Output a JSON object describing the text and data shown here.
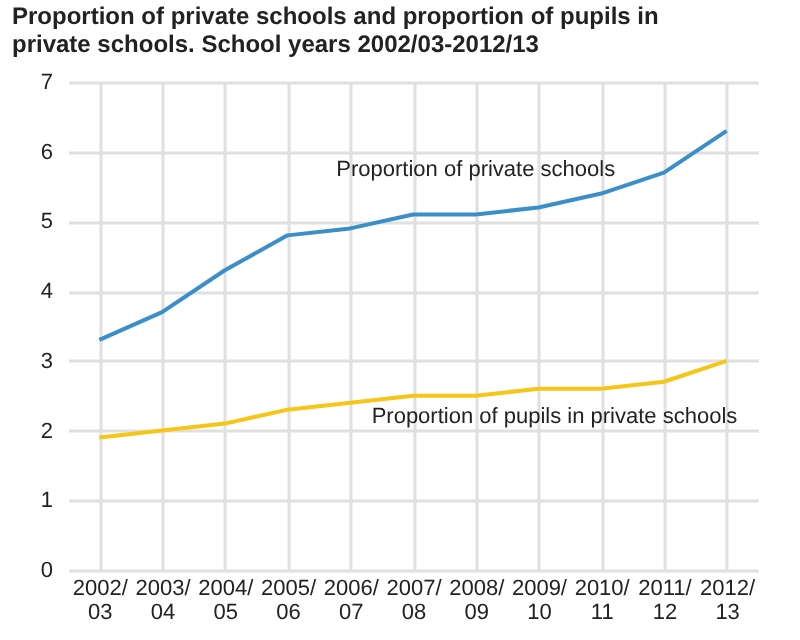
{
  "chart_data": {
    "type": "line",
    "title": "Proportion of private schools and proportion of pupils in private schools. School years 2002/03-2012/13",
    "categories": [
      "2002/03",
      "2003/04",
      "2004/05",
      "2005/06",
      "2006/07",
      "2007/08",
      "2008/09",
      "2009/10",
      "2010/11",
      "2011/12",
      "2012/13"
    ],
    "series": [
      {
        "name": "Proportion of private schools",
        "color": "#3a8fc8",
        "values": [
          3.3,
          3.7,
          4.3,
          4.8,
          4.9,
          5.1,
          5.1,
          5.2,
          5.4,
          5.7,
          6.3
        ]
      },
      {
        "name": "Proportion of pupils in private schools",
        "color": "#f5c518",
        "values": [
          1.9,
          2.0,
          2.1,
          2.3,
          2.4,
          2.5,
          2.5,
          2.6,
          2.6,
          2.7,
          3.0
        ]
      }
    ],
    "ylim": [
      0,
      7
    ],
    "yticks": [
      0,
      1,
      2,
      3,
      4,
      5,
      6,
      7
    ],
    "grid": true,
    "marker": "none",
    "line_style": "solid"
  }
}
